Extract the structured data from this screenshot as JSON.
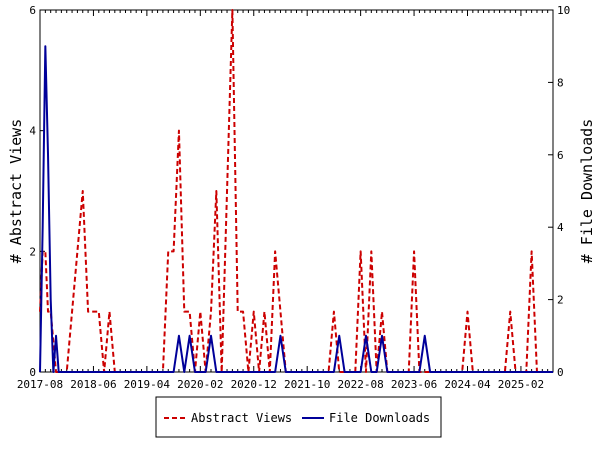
{
  "chart_data": {
    "type": "line",
    "title": "",
    "xlabel": "",
    "ylabel": "# Abstract Views",
    "y2label": "# File Downloads",
    "ylim": [
      0,
      6
    ],
    "y2lim": [
      0,
      10
    ],
    "y_ticks": [
      "0",
      "2",
      "4",
      "6"
    ],
    "y2_ticks": [
      "0",
      "2",
      "4",
      "6",
      "8",
      "10"
    ],
    "x_tick_labels": [
      "2017-08",
      "2018-06",
      "2019-04",
      "2020-02",
      "2020-12",
      "2021-10",
      "2022-08",
      "2023-06",
      "2024-04",
      "2025-02"
    ],
    "x_tick_positions": [
      0,
      10,
      20,
      30,
      40,
      50,
      60,
      70,
      80,
      90
    ],
    "x_range": [
      0,
      96
    ],
    "legend_position": "bottom",
    "series": [
      {
        "name": "Abstract Views",
        "axis": "left",
        "color": "#cc0000",
        "style": "dashed",
        "points": [
          [
            0,
            1
          ],
          [
            0.5,
            2
          ],
          [
            1,
            2
          ],
          [
            1.5,
            1
          ],
          [
            2,
            1
          ],
          [
            3,
            0
          ],
          [
            5,
            0
          ],
          [
            6,
            1
          ],
          [
            7,
            2
          ],
          [
            8,
            3
          ],
          [
            9,
            1
          ],
          [
            11,
            1
          ],
          [
            12,
            0
          ],
          [
            13,
            1
          ],
          [
            14,
            0
          ],
          [
            23,
            0
          ],
          [
            24,
            2
          ],
          [
            25,
            2
          ],
          [
            26,
            4
          ],
          [
            27,
            1
          ],
          [
            28,
            1
          ],
          [
            29,
            0
          ],
          [
            30,
            1
          ],
          [
            31,
            0
          ],
          [
            32,
            1
          ],
          [
            33,
            3
          ],
          [
            34,
            0
          ],
          [
            35,
            3
          ],
          [
            36,
            6
          ],
          [
            37,
            1
          ],
          [
            38,
            1
          ],
          [
            39,
            0
          ],
          [
            40,
            1
          ],
          [
            41,
            0
          ],
          [
            42,
            1
          ],
          [
            43,
            0
          ],
          [
            44,
            2
          ],
          [
            45,
            1
          ],
          [
            46,
            0
          ],
          [
            54,
            0
          ],
          [
            55,
            1
          ],
          [
            56,
            0
          ],
          [
            59,
            0
          ],
          [
            60,
            2
          ],
          [
            61,
            0
          ],
          [
            62,
            2
          ],
          [
            63,
            0
          ],
          [
            64,
            1
          ],
          [
            65,
            0
          ],
          [
            69,
            0
          ],
          [
            70,
            2
          ],
          [
            71,
            0
          ],
          [
            79,
            0
          ],
          [
            80,
            1
          ],
          [
            81,
            0
          ],
          [
            87,
            0
          ],
          [
            88,
            1
          ],
          [
            89,
            0
          ],
          [
            91,
            0
          ],
          [
            92,
            2
          ],
          [
            93,
            0
          ]
        ]
      },
      {
        "name": "File Downloads",
        "axis": "right",
        "color": "#000099",
        "style": "solid",
        "points": [
          [
            0,
            0
          ],
          [
            0.5,
            4
          ],
          [
            1,
            9
          ],
          [
            1.5,
            6
          ],
          [
            2,
            2
          ],
          [
            2.5,
            0
          ],
          [
            3,
            1
          ],
          [
            3.5,
            0
          ],
          [
            25,
            0
          ],
          [
            26,
            1
          ],
          [
            27,
            0
          ],
          [
            28,
            1
          ],
          [
            29,
            0
          ],
          [
            31,
            0
          ],
          [
            32,
            1
          ],
          [
            33,
            0
          ],
          [
            44,
            0
          ],
          [
            45,
            1
          ],
          [
            46,
            0
          ],
          [
            55,
            0
          ],
          [
            56,
            1
          ],
          [
            57,
            0
          ],
          [
            60,
            0
          ],
          [
            61,
            1
          ],
          [
            62,
            0
          ],
          [
            63,
            0
          ],
          [
            64,
            1
          ],
          [
            65,
            0
          ],
          [
            71,
            0
          ],
          [
            72,
            1
          ],
          [
            73,
            0
          ],
          [
            96,
            0
          ]
        ]
      }
    ]
  }
}
